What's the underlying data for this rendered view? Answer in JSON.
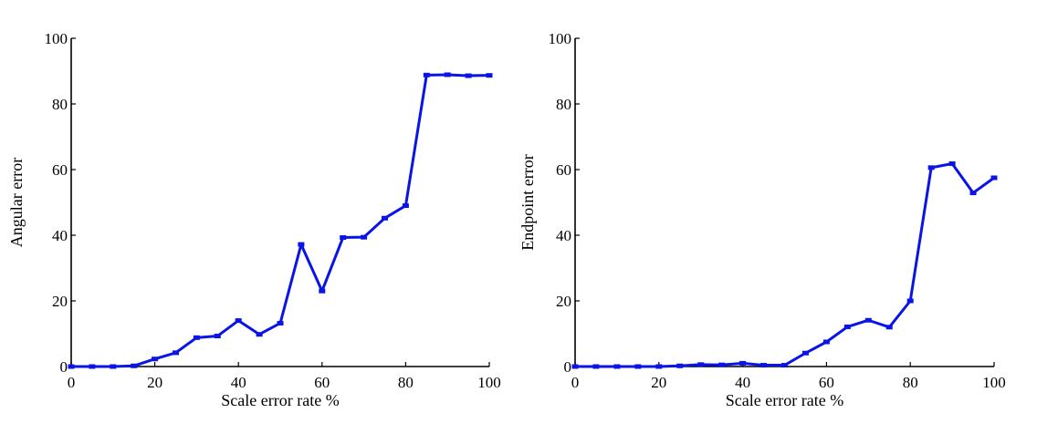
{
  "chart_data": [
    {
      "type": "line",
      "id": "left",
      "xlabel": "Scale error rate %",
      "ylabel": "Angular error",
      "xlim": [
        0,
        100
      ],
      "ylim": [
        0,
        100
      ],
      "xticks": [
        0,
        20,
        40,
        60,
        80,
        100
      ],
      "yticks": [
        0,
        20,
        40,
        60,
        80,
        100
      ],
      "grid": false,
      "color": "#0a14e6",
      "x": [
        0,
        5,
        10,
        15,
        20,
        25,
        30,
        35,
        40,
        45,
        50,
        55,
        60,
        65,
        70,
        75,
        80,
        85,
        90,
        95,
        100
      ],
      "y": [
        0,
        0,
        0,
        0.2,
        2.3,
        4.2,
        8.8,
        9.3,
        14,
        9.8,
        13.2,
        37.2,
        23,
        39.3,
        39.4,
        45.2,
        49,
        88.8,
        88.9,
        88.6,
        88.7
      ]
    },
    {
      "type": "line",
      "id": "right",
      "xlabel": "Scale error rate %",
      "ylabel": "Endpoint error",
      "xlim": [
        0,
        100
      ],
      "ylim": [
        0,
        100
      ],
      "xticks": [
        0,
        20,
        40,
        60,
        80,
        100
      ],
      "yticks": [
        0,
        20,
        40,
        60,
        80,
        100
      ],
      "grid": false,
      "color": "#0a14e6",
      "x": [
        0,
        5,
        10,
        15,
        20,
        25,
        30,
        35,
        40,
        45,
        50,
        55,
        60,
        65,
        70,
        75,
        80,
        85,
        90,
        95,
        100
      ],
      "y": [
        0,
        0,
        0,
        0,
        0,
        0.2,
        0.6,
        0.5,
        1,
        0.4,
        0.4,
        4.1,
        7.5,
        12.1,
        14.1,
        12,
        20,
        60.6,
        61.8,
        52.9,
        57.5
      ]
    }
  ]
}
